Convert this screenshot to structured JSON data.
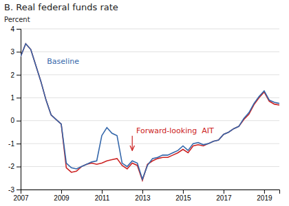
{
  "chart_data": {
    "type": "line",
    "title": "B. Real federal funds rate",
    "ylabel": "Percent",
    "xlim": [
      2007,
      2019.75
    ],
    "ylim": [
      -3,
      4
    ],
    "xticks": [
      2007,
      2009,
      2011,
      2013,
      2015,
      2017,
      2019
    ],
    "yticks": [
      -3,
      -2,
      -1,
      0,
      1,
      2,
      3,
      4
    ],
    "grid": true,
    "x": [
      2007.0,
      2007.25,
      2007.5,
      2007.75,
      2008.0,
      2008.25,
      2008.5,
      2008.75,
      2009.0,
      2009.25,
      2009.5,
      2009.75,
      2010.0,
      2010.25,
      2010.5,
      2010.75,
      2011.0,
      2011.25,
      2011.5,
      2011.75,
      2012.0,
      2012.25,
      2012.5,
      2012.75,
      2013.0,
      2013.25,
      2013.5,
      2013.75,
      2014.0,
      2014.25,
      2014.5,
      2014.75,
      2015.0,
      2015.25,
      2015.5,
      2015.75,
      2016.0,
      2016.25,
      2016.5,
      2016.75,
      2017.0,
      2017.25,
      2017.5,
      2017.75,
      2018.0,
      2018.25,
      2018.5,
      2018.75,
      2019.0,
      2019.25,
      2019.5,
      2019.75
    ],
    "series": [
      {
        "color": "#CC2222",
        "values": [
          2.8,
          3.35,
          3.1,
          2.4,
          1.7,
          0.9,
          0.25,
          0.05,
          -0.15,
          -2.05,
          -2.25,
          -2.2,
          -2.0,
          -1.9,
          -1.85,
          -1.9,
          -1.85,
          -1.75,
          -1.7,
          -1.65,
          -1.95,
          -2.1,
          -1.85,
          -1.95,
          -2.6,
          -1.9,
          -1.75,
          -1.65,
          -1.6,
          -1.6,
          -1.5,
          -1.4,
          -1.25,
          -1.4,
          -1.1,
          -1.05,
          -1.1,
          -1.0,
          -0.9,
          -0.85,
          -0.6,
          -0.5,
          -0.35,
          -0.25,
          0.05,
          0.28,
          0.7,
          1.0,
          1.25,
          0.85,
          0.72,
          0.68
        ]
      },
      {
        "color": "#3366AA",
        "values": [
          2.8,
          3.35,
          3.1,
          2.4,
          1.7,
          0.9,
          0.25,
          0.05,
          -0.15,
          -1.85,
          -2.05,
          -2.1,
          -2.0,
          -1.9,
          -1.8,
          -1.75,
          -0.65,
          -0.3,
          -0.55,
          -0.65,
          -1.85,
          -2.0,
          -1.75,
          -1.85,
          -2.55,
          -1.95,
          -1.65,
          -1.6,
          -1.5,
          -1.5,
          -1.4,
          -1.3,
          -1.1,
          -1.3,
          -1.0,
          -0.95,
          -1.05,
          -1.0,
          -0.9,
          -0.85,
          -0.6,
          -0.5,
          -0.35,
          -0.25,
          0.1,
          0.35,
          0.75,
          1.05,
          1.3,
          0.9,
          0.8,
          0.75
        ]
      }
    ],
    "annotations": [
      {
        "text": "Baseline",
        "x": 2008.3,
        "y": 2.6,
        "color": "#3366AA"
      },
      {
        "text": "Forward-looking  AIT",
        "x": 2012.7,
        "y": -0.6,
        "color": "#CC2222",
        "arrow_x": 2012.5,
        "arrow_y": -1.3
      }
    ]
  }
}
